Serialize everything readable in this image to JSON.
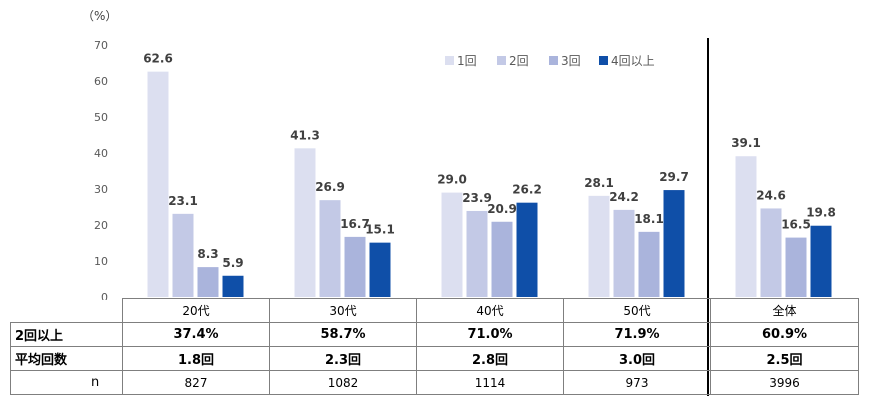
{
  "chart_data": {
    "type": "bar",
    "unit_label": "（%）",
    "ylim": [
      0,
      70
    ],
    "y_ticks": [
      0,
      10,
      20,
      30,
      40,
      50,
      60,
      70
    ],
    "categories": [
      "20代",
      "30代",
      "40代",
      "50代",
      "全体"
    ],
    "series": [
      {
        "name": "1回",
        "color": "#dcdff0",
        "values": [
          62.6,
          41.3,
          29.0,
          28.1,
          39.1
        ]
      },
      {
        "name": "2回",
        "color": "#c3c9e6",
        "values": [
          23.1,
          26.9,
          23.9,
          24.2,
          24.6
        ]
      },
      {
        "name": "3回",
        "color": "#aab4dc",
        "values": [
          8.3,
          16.7,
          20.9,
          18.1,
          16.5
        ]
      },
      {
        "name": "4回以上",
        "color": "#0f4fa8",
        "values": [
          5.9,
          15.1,
          26.2,
          29.7,
          19.8
        ]
      }
    ],
    "data_labels": [
      [
        "62.6",
        "41.3",
        "29.0",
        "28.1",
        "39.1"
      ],
      [
        "23.1",
        "26.9",
        "23.9",
        "24.2",
        "24.6"
      ],
      [
        "8.3",
        "16.7",
        "20.9",
        "18.1",
        "16.5"
      ],
      [
        "5.9",
        "15.1",
        "26.2",
        "29.7",
        "19.8"
      ]
    ],
    "legend_position": "top-right",
    "grid": false
  },
  "table": {
    "rows": [
      {
        "label": "2回以上",
        "values": [
          "37.4%",
          "58.7%",
          "71.0%",
          "71.9%",
          "60.9%"
        ]
      },
      {
        "label": "平均回数",
        "values": [
          "1.8回",
          "2.3回",
          "2.8回",
          "3.0回",
          "2.5回"
        ]
      },
      {
        "label": "n",
        "values": [
          "827",
          "1082",
          "1114",
          "973",
          "3996"
        ]
      }
    ]
  }
}
